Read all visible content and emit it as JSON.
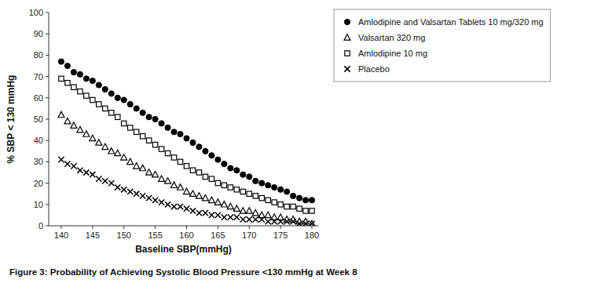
{
  "chart_data": {
    "type": "scatter",
    "title": "Figure 3: Probability of Achieving Systolic Blood Pressure <130 mmHg at Week 8",
    "xlabel": "Baseline SBP(mmHg)",
    "ylabel": "% SBP < 130 mmHg",
    "x": [
      140,
      141,
      142,
      143,
      144,
      145,
      146,
      147,
      148,
      149,
      150,
      151,
      152,
      153,
      154,
      155,
      156,
      157,
      158,
      159,
      160,
      161,
      162,
      163,
      164,
      165,
      166,
      167,
      168,
      169,
      170,
      171,
      172,
      173,
      174,
      175,
      176,
      177,
      178,
      179,
      180
    ],
    "series": [
      {
        "name": "Amlodipine and Valsartan Tablets 10 mg/320 mg",
        "color": "#000000",
        "marker": "circle",
        "values": [
          77,
          75,
          72,
          71,
          69,
          68,
          66,
          64,
          62,
          60,
          59,
          57,
          55,
          53,
          51,
          50,
          48,
          46,
          44,
          43,
          41,
          39,
          37,
          35,
          33,
          31,
          29,
          27,
          26,
          24,
          23,
          21,
          20,
          19,
          18,
          17,
          16,
          14,
          13,
          12,
          12
        ]
      },
      {
        "name": "Valsartan 320 mg",
        "color": "#000000",
        "marker": "triangle-open",
        "values": [
          52,
          49,
          47,
          45,
          43,
          41,
          39,
          37,
          35,
          34,
          32,
          30,
          28,
          27,
          25,
          24,
          22,
          21,
          19,
          18,
          16,
          15,
          14,
          13,
          12,
          11,
          10,
          9,
          8,
          7,
          7,
          6,
          5,
          5,
          4,
          4,
          3,
          3,
          2,
          2,
          1
        ]
      },
      {
        "name": "Amlodipine 10 mg",
        "color": "#000000",
        "marker": "square-open",
        "values": [
          69,
          67,
          65,
          63,
          61,
          59,
          57,
          55,
          53,
          51,
          48,
          46,
          44,
          42,
          40,
          38,
          36,
          34,
          32,
          30,
          28,
          26,
          25,
          23,
          22,
          20,
          19,
          18,
          17,
          16,
          15,
          14,
          13,
          12,
          11,
          10,
          9,
          9,
          8,
          7,
          7
        ]
      },
      {
        "name": "Placebo",
        "color": "#000000",
        "marker": "x",
        "values": [
          31,
          29,
          28,
          26,
          25,
          24,
          22,
          21,
          20,
          18,
          17,
          16,
          15,
          14,
          13,
          12,
          11,
          10,
          9,
          9,
          8,
          7,
          6,
          6,
          5,
          5,
          4,
          4,
          4,
          3,
          3,
          3,
          3,
          2,
          2,
          2,
          2,
          2,
          1,
          1,
          1
        ]
      }
    ],
    "xlim": [
      138,
      181
    ],
    "ylim": [
      0,
      100
    ],
    "xticks": [
      140,
      145,
      150,
      155,
      160,
      165,
      170,
      175,
      180
    ],
    "yticks": [
      0,
      10,
      20,
      30,
      40,
      50,
      60,
      70,
      80,
      90,
      100
    ],
    "grid": false,
    "legend": "right"
  }
}
